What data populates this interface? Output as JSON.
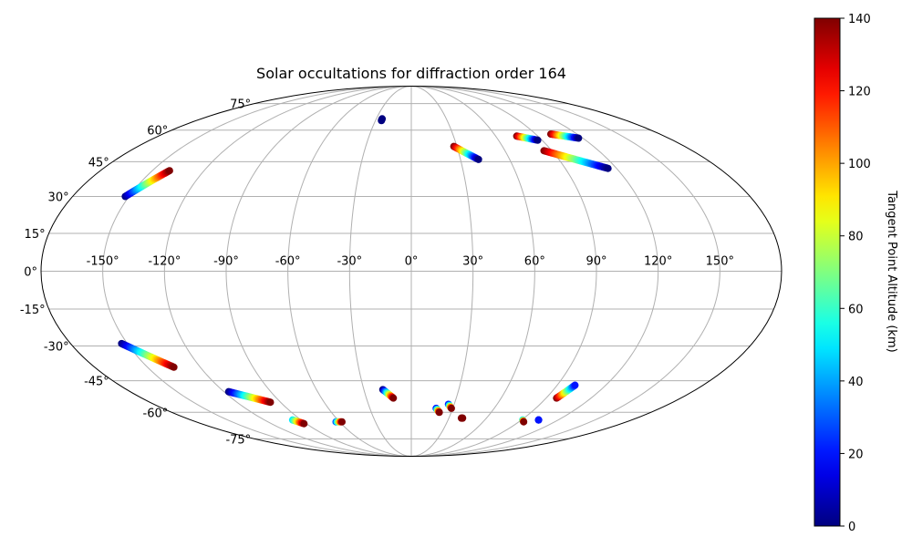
{
  "chart_data": {
    "type": "scatter",
    "projection": "mollweide",
    "title": "Solar occultations for diffraction order 164",
    "grid": true,
    "x_ticks": [
      "-150°",
      "-120°",
      "-90°",
      "-60°",
      "-30°",
      "0°",
      "30°",
      "60°",
      "90°",
      "120°",
      "150°"
    ],
    "x_tick_values": [
      -150,
      -120,
      -90,
      -60,
      -30,
      0,
      30,
      60,
      90,
      120,
      150
    ],
    "y_ticks": [
      "75°",
      "60°",
      "45°",
      "30°",
      "15°",
      "0°",
      "-15°",
      "-30°",
      "-45°",
      "-60°",
      "-75°"
    ],
    "y_tick_values": [
      75,
      60,
      45,
      30,
      15,
      0,
      -15,
      -30,
      -45,
      -60,
      -75
    ],
    "colorbar": {
      "label": "Tangent Point Altitude (km)",
      "colormap": "jet",
      "range": [
        0,
        140
      ],
      "ticks": [
        "0",
        "20",
        "40",
        "60",
        "80",
        "100",
        "120",
        "140"
      ],
      "tick_values": [
        0,
        20,
        40,
        60,
        80,
        100,
        120,
        140
      ]
    },
    "tracks": [
      {
        "lon": [
          -152,
          -140
        ],
        "lat": [
          30,
          41
        ],
        "alt": [
          0,
          140
        ]
      },
      {
        "lon": [
          -153,
          -135
        ],
        "lat": [
          -29,
          -39
        ],
        "alt": [
          0,
          140
        ]
      },
      {
        "lon": [
          -117,
          -97
        ],
        "lat": [
          -50,
          -55
        ],
        "alt": [
          0,
          140
        ]
      },
      {
        "lon": [
          -97,
          -92
        ],
        "lat": [
          -64,
          -66
        ],
        "alt": [
          50,
          140
        ]
      },
      {
        "lon": [
          -63,
          -58
        ],
        "lat": [
          -65,
          -65
        ],
        "alt": [
          30,
          140
        ]
      },
      {
        "lon": [
          -25,
          -25
        ],
        "lat": [
          66,
          65
        ],
        "alt": [
          0,
          0
        ]
      },
      {
        "lon": [
          -18,
          -12
        ],
        "lat": [
          -49,
          -53
        ],
        "alt": [
          0,
          140
        ]
      },
      {
        "lon": [
          18,
          21
        ],
        "lat": [
          -58,
          -60
        ],
        "alt": [
          20,
          140
        ]
      },
      {
        "lon": [
          26,
          29
        ],
        "lat": [
          -56,
          -58
        ],
        "alt": [
          20,
          140
        ]
      },
      {
        "lon": [
          40,
          41
        ],
        "lat": [
          -63,
          -63
        ],
        "alt": [
          140,
          140
        ]
      },
      {
        "lon": [
          28,
          41
        ],
        "lat": [
          52,
          46
        ],
        "alt": [
          140,
          0
        ]
      },
      {
        "lon": [
          75,
          87
        ],
        "lat": [
          57,
          55
        ],
        "alt": [
          140,
          0
        ]
      },
      {
        "lon": [
          85,
          115
        ],
        "lat": [
          50,
          42
        ],
        "alt": [
          140,
          0
        ]
      },
      {
        "lon": [
          101,
          117
        ],
        "lat": [
          58,
          56
        ],
        "alt": [
          140,
          0
        ]
      },
      {
        "lon": [
          97,
          101
        ],
        "lat": [
          -53,
          -47
        ],
        "alt": [
          140,
          20
        ]
      },
      {
        "lon": [
          91,
          94
        ],
        "lat": [
          -64,
          -65
        ],
        "alt": [
          50,
          140
        ]
      },
      {
        "lon": [
          104,
          104
        ],
        "lat": [
          -64,
          -64
        ],
        "alt": [
          20,
          20
        ]
      }
    ]
  }
}
